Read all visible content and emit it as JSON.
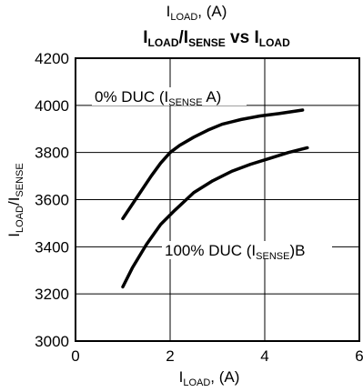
{
  "chart_data": {
    "type": "line",
    "top_label": {
      "main": "I",
      "sub": "LOAD",
      "suffix": ", (A)"
    },
    "title": {
      "main1": "I",
      "sub1": "LOAD",
      "mid": "/I",
      "sub2": "SENSE",
      "vs": " vs I",
      "sub3": "LOAD"
    },
    "xlabel": {
      "main": "I",
      "sub": "LOAD",
      "suffix": ", (A)"
    },
    "ylabel": {
      "main1": "I",
      "sub1": "LOAD",
      "mid": "/I",
      "sub2": "SENSE"
    },
    "xlim": [
      0,
      6
    ],
    "ylim": [
      3000,
      4200
    ],
    "xticks": [
      "0",
      "2",
      "4",
      "6"
    ],
    "yticks": [
      "3000",
      "3200",
      "3400",
      "3600",
      "3800",
      "4000",
      "4200"
    ],
    "grid": true,
    "annotations": [
      {
        "pre": "0% DUC (I",
        "sub": "SENSE",
        "post": " A)"
      },
      {
        "pre": "100% DUC (I",
        "sub": "SENSE",
        "post": ")B"
      }
    ],
    "series": [
      {
        "color": "#000000",
        "x": [
          1.0,
          1.3,
          1.6,
          1.8,
          2.0,
          2.2,
          2.5,
          2.8,
          3.1,
          3.5,
          3.9,
          4.3,
          4.8
        ],
        "y": [
          3520,
          3610,
          3700,
          3755,
          3800,
          3830,
          3865,
          3895,
          3920,
          3940,
          3955,
          3965,
          3980
        ]
      },
      {
        "color": "#000000",
        "x": [
          1.0,
          1.2,
          1.5,
          1.8,
          2.1,
          2.5,
          2.9,
          3.3,
          3.7,
          4.1,
          4.5,
          4.9
        ],
        "y": [
          3230,
          3310,
          3410,
          3495,
          3555,
          3630,
          3680,
          3720,
          3750,
          3775,
          3800,
          3820
        ]
      }
    ]
  }
}
